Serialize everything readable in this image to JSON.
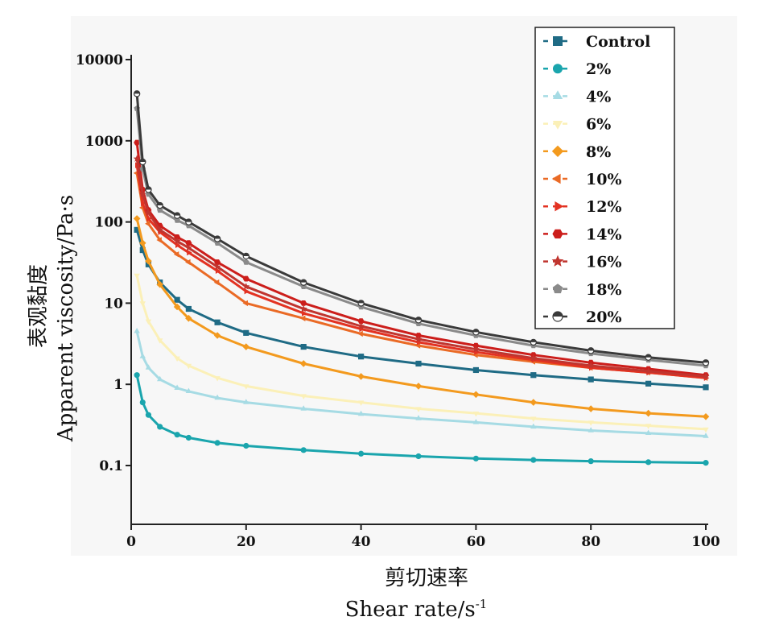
{
  "chart_data": {
    "type": "line",
    "title": "",
    "xlabel_cn": "剪切速率",
    "xlabel": "Shear rate/s",
    "xlabel_exponent": "-1",
    "ylabel_cn": "表观黏度",
    "ylabel": "Apparent viscosity/Pa·s",
    "y_scale": "log",
    "xlim": [
      0,
      100
    ],
    "ylim": [
      0.03,
      10000
    ],
    "x_ticks": [
      0,
      20,
      40,
      60,
      80,
      100
    ],
    "x_tick_labels": [
      "0",
      "20",
      "40",
      "60",
      "80",
      "100"
    ],
    "y_ticks": [
      0.1,
      1,
      10,
      100,
      1000,
      10000
    ],
    "y_tick_labels": [
      "0.1",
      "1",
      "10",
      "100",
      "1000",
      "10000"
    ],
    "grid": false,
    "legend_position": "top-right",
    "series": [
      {
        "name": "Control",
        "color": "#1f6b85",
        "marker": "square",
        "x": [
          1,
          2,
          3,
          5,
          8,
          10,
          15,
          20,
          30,
          40,
          50,
          60,
          70,
          80,
          90,
          100
        ],
        "y": [
          80,
          45,
          30,
          18,
          11,
          8.5,
          5.8,
          4.3,
          2.9,
          2.2,
          1.8,
          1.5,
          1.3,
          1.15,
          1.02,
          0.92
        ]
      },
      {
        "name": "2%",
        "color": "#1aa5ad",
        "marker": "circle",
        "x": [
          1,
          2,
          3,
          5,
          8,
          10,
          15,
          20,
          30,
          40,
          50,
          60,
          70,
          80,
          90,
          100
        ],
        "y": [
          1.3,
          0.6,
          0.42,
          0.3,
          0.24,
          0.22,
          0.19,
          0.175,
          0.155,
          0.14,
          0.13,
          0.122,
          0.117,
          0.113,
          0.11,
          0.108
        ]
      },
      {
        "name": "4%",
        "color": "#a6dbe4",
        "marker": "triangle-up",
        "x": [
          1,
          2,
          3,
          5,
          8,
          10,
          15,
          20,
          30,
          40,
          50,
          60,
          70,
          80,
          90,
          100
        ],
        "y": [
          4.5,
          2.2,
          1.6,
          1.15,
          0.9,
          0.82,
          0.68,
          0.6,
          0.5,
          0.43,
          0.38,
          0.34,
          0.3,
          0.27,
          0.25,
          0.23
        ]
      },
      {
        "name": "6%",
        "color": "#fbf0b8",
        "marker": "triangle-down",
        "x": [
          1,
          2,
          3,
          5,
          8,
          10,
          15,
          20,
          30,
          40,
          50,
          60,
          70,
          80,
          90,
          100
        ],
        "y": [
          22,
          10,
          6,
          3.5,
          2.1,
          1.7,
          1.2,
          0.95,
          0.72,
          0.6,
          0.5,
          0.44,
          0.38,
          0.34,
          0.31,
          0.28
        ]
      },
      {
        "name": "8%",
        "color": "#f39a1e",
        "marker": "diamond",
        "x": [
          1,
          2,
          3,
          5,
          8,
          10,
          15,
          20,
          30,
          40,
          50,
          60,
          70,
          80,
          90,
          100
        ],
        "y": [
          110,
          55,
          33,
          17,
          9,
          6.5,
          4,
          2.9,
          1.8,
          1.25,
          0.95,
          0.75,
          0.6,
          0.5,
          0.44,
          0.4
        ]
      },
      {
        "name": "10%",
        "color": "#ea6a25",
        "marker": "triangle-left",
        "x": [
          1,
          2,
          3,
          5,
          8,
          10,
          15,
          20,
          30,
          40,
          50,
          60,
          70,
          80,
          90,
          100
        ],
        "y": [
          400,
          150,
          95,
          60,
          40,
          32,
          18,
          10,
          6.5,
          4.2,
          3,
          2.3,
          1.9,
          1.6,
          1.4,
          1.2
        ]
      },
      {
        "name": "12%",
        "color": "#e33222",
        "marker": "triangle-right",
        "x": [
          1,
          2,
          3,
          5,
          8,
          10,
          15,
          20,
          30,
          40,
          50,
          60,
          70,
          80,
          90,
          100
        ],
        "y": [
          500,
          170,
          110,
          75,
          52,
          42,
          25,
          14,
          7.5,
          4.8,
          3.3,
          2.5,
          2,
          1.6,
          1.4,
          1.2
        ]
      },
      {
        "name": "14%",
        "color": "#cc1e1b",
        "marker": "hexagon",
        "x": [
          1,
          2,
          3,
          5,
          8,
          10,
          15,
          20,
          30,
          40,
          50,
          60,
          70,
          80,
          90,
          100
        ],
        "y": [
          950,
          250,
          140,
          90,
          65,
          55,
          32,
          20,
          10,
          6,
          4,
          3,
          2.3,
          1.85,
          1.55,
          1.3
        ]
      },
      {
        "name": "16%",
        "color": "#c0352f",
        "marker": "star",
        "x": [
          1,
          2,
          3,
          5,
          8,
          10,
          15,
          20,
          30,
          40,
          50,
          60,
          70,
          80,
          90,
          100
        ],
        "y": [
          600,
          220,
          130,
          80,
          58,
          48,
          28,
          16,
          8.5,
          5.2,
          3.6,
          2.7,
          2.1,
          1.7,
          1.45,
          1.25
        ]
      },
      {
        "name": "18%",
        "color": "#8a8a8a",
        "marker": "pentagon",
        "x": [
          1,
          2,
          3,
          5,
          8,
          10,
          15,
          20,
          30,
          40,
          50,
          60,
          70,
          80,
          90,
          100
        ],
        "y": [
          2500,
          450,
          220,
          140,
          105,
          90,
          55,
          32,
          16,
          9,
          5.6,
          4,
          3,
          2.4,
          2,
          1.7
        ]
      },
      {
        "name": "20%",
        "color": "#3a3a3a",
        "marker": "half-circle",
        "x": [
          1,
          2,
          3,
          5,
          8,
          10,
          15,
          20,
          30,
          40,
          50,
          60,
          70,
          80,
          90,
          100
        ],
        "y": [
          3800,
          550,
          250,
          160,
          120,
          100,
          62,
          38,
          18,
          10,
          6.2,
          4.4,
          3.3,
          2.6,
          2.15,
          1.85
        ]
      }
    ]
  }
}
